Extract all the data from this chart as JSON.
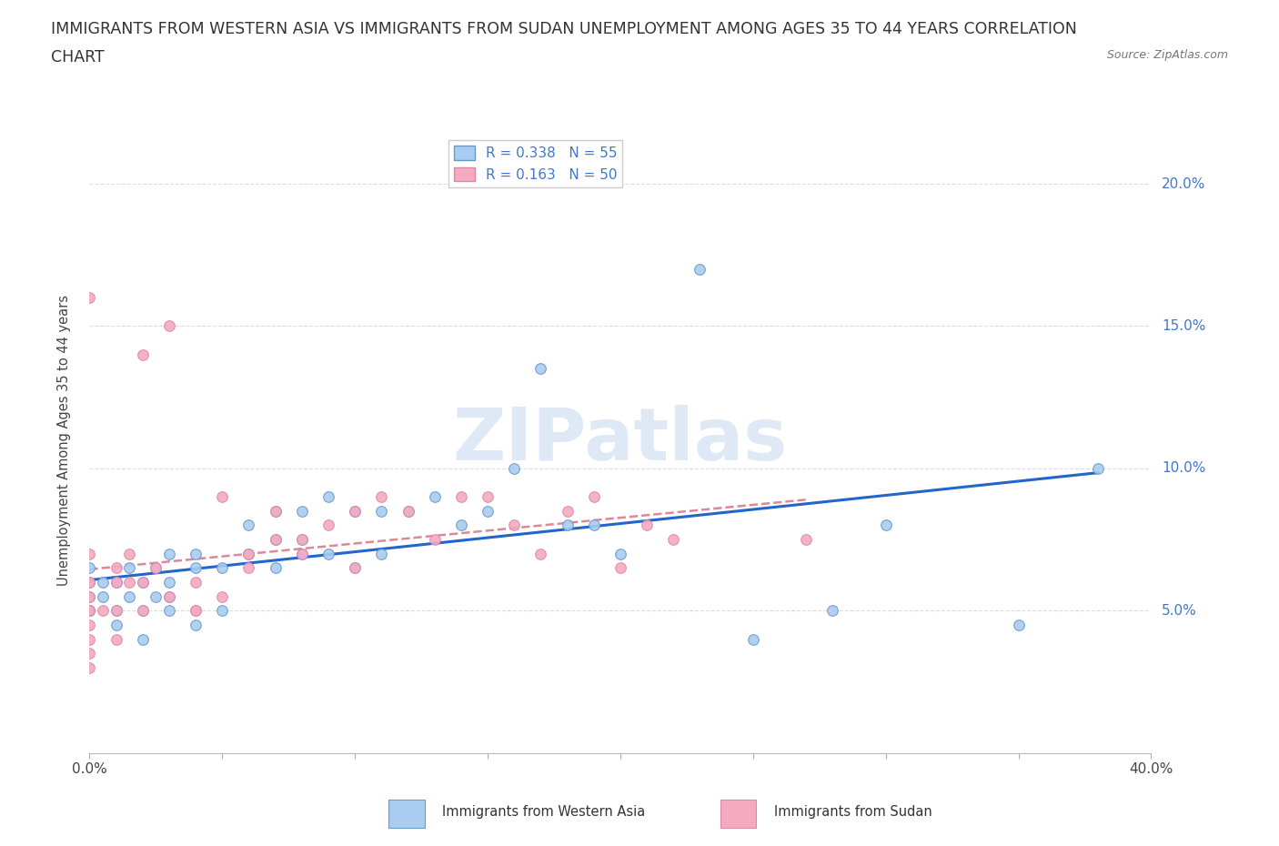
{
  "title_line1": "IMMIGRANTS FROM WESTERN ASIA VS IMMIGRANTS FROM SUDAN UNEMPLOYMENT AMONG AGES 35 TO 44 YEARS CORRELATION",
  "title_line2": "CHART",
  "source": "Source: ZipAtlas.com",
  "ylabel": "Unemployment Among Ages 35 to 44 years",
  "xlim": [
    0.0,
    0.4
  ],
  "ylim": [
    0.0,
    0.22
  ],
  "x_tick_positions": [
    0.0,
    0.05,
    0.1,
    0.15,
    0.2,
    0.25,
    0.3,
    0.35,
    0.4
  ],
  "y_tick_positions": [
    0.0,
    0.05,
    0.1,
    0.15,
    0.2
  ],
  "y_tick_labels": [
    "",
    "5.0%",
    "10.0%",
    "15.0%",
    "20.0%"
  ],
  "watermark": "ZIPatlas",
  "R_western_asia": 0.338,
  "N_western_asia": 55,
  "R_sudan": 0.163,
  "N_sudan": 50,
  "color_western_asia": "#aaccf0",
  "color_sudan": "#f4aabf",
  "edge_western_asia": "#6699cc",
  "edge_sudan": "#dd88aa",
  "trendline_wa_color": "#2266cc",
  "trendline_su_color": "#dd8899",
  "label_color": "#4477cc",
  "grid_color": "#dddddd",
  "background_color": "#ffffff",
  "title_fontsize": 12.5,
  "axis_label_fontsize": 10.5,
  "tick_fontsize": 11,
  "western_asia_x": [
    0.0,
    0.0,
    0.0,
    0.0,
    0.0,
    0.005,
    0.005,
    0.01,
    0.01,
    0.01,
    0.015,
    0.015,
    0.02,
    0.02,
    0.02,
    0.025,
    0.025,
    0.03,
    0.03,
    0.03,
    0.03,
    0.04,
    0.04,
    0.04,
    0.05,
    0.05,
    0.06,
    0.06,
    0.07,
    0.07,
    0.07,
    0.08,
    0.08,
    0.08,
    0.09,
    0.09,
    0.1,
    0.1,
    0.11,
    0.11,
    0.12,
    0.13,
    0.14,
    0.15,
    0.16,
    0.17,
    0.18,
    0.19,
    0.2,
    0.23,
    0.25,
    0.28,
    0.3,
    0.35,
    0.38
  ],
  "western_asia_y": [
    0.05,
    0.055,
    0.06,
    0.065,
    0.05,
    0.06,
    0.055,
    0.05,
    0.06,
    0.045,
    0.055,
    0.065,
    0.05,
    0.06,
    0.04,
    0.055,
    0.065,
    0.06,
    0.07,
    0.055,
    0.05,
    0.065,
    0.07,
    0.045,
    0.065,
    0.05,
    0.07,
    0.08,
    0.065,
    0.075,
    0.085,
    0.07,
    0.085,
    0.075,
    0.07,
    0.09,
    0.065,
    0.085,
    0.085,
    0.07,
    0.085,
    0.09,
    0.08,
    0.085,
    0.1,
    0.135,
    0.08,
    0.08,
    0.07,
    0.17,
    0.04,
    0.05,
    0.08,
    0.045,
    0.1
  ],
  "sudan_x": [
    0.0,
    0.0,
    0.0,
    0.0,
    0.0,
    0.0,
    0.0,
    0.0,
    0.0,
    0.0,
    0.005,
    0.01,
    0.01,
    0.01,
    0.01,
    0.015,
    0.015,
    0.02,
    0.02,
    0.02,
    0.025,
    0.03,
    0.03,
    0.04,
    0.04,
    0.04,
    0.05,
    0.05,
    0.06,
    0.06,
    0.07,
    0.07,
    0.08,
    0.08,
    0.09,
    0.1,
    0.1,
    0.11,
    0.12,
    0.13,
    0.14,
    0.15,
    0.16,
    0.17,
    0.18,
    0.19,
    0.2,
    0.21,
    0.22,
    0.27
  ],
  "sudan_y": [
    0.16,
    0.05,
    0.06,
    0.07,
    0.055,
    0.05,
    0.045,
    0.04,
    0.035,
    0.03,
    0.05,
    0.05,
    0.06,
    0.065,
    0.04,
    0.06,
    0.07,
    0.05,
    0.06,
    0.14,
    0.065,
    0.055,
    0.15,
    0.05,
    0.06,
    0.05,
    0.055,
    0.09,
    0.07,
    0.065,
    0.075,
    0.085,
    0.07,
    0.075,
    0.08,
    0.085,
    0.065,
    0.09,
    0.085,
    0.075,
    0.09,
    0.09,
    0.08,
    0.07,
    0.085,
    0.09,
    0.065,
    0.08,
    0.075,
    0.075
  ]
}
